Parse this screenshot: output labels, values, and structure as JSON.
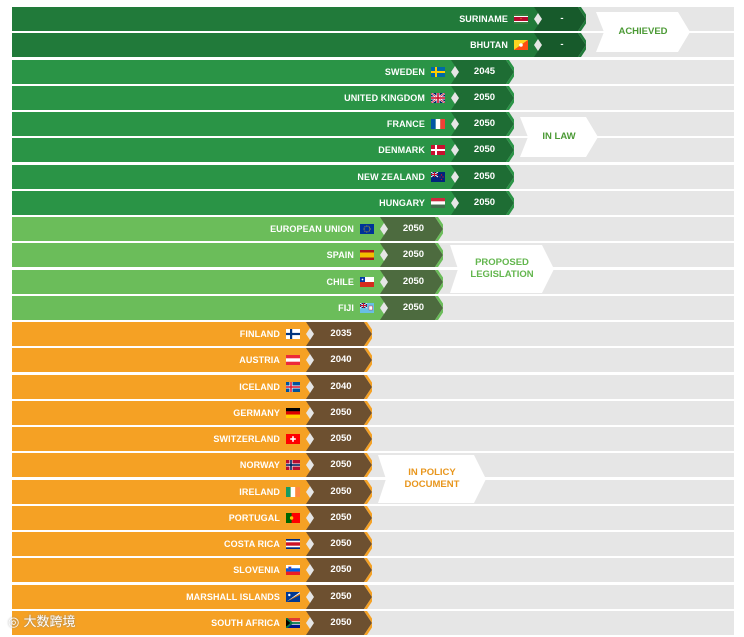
{
  "chart_data": {
    "type": "bar",
    "title": "",
    "colors": {
      "achieved": "#217a3a",
      "achieved_year": "#175a2b",
      "law": "#2a9446",
      "law_year": "#1e6d34",
      "proposed": "#6bbd5a",
      "proposed_year": "#4d6b3f",
      "policy": "#f5a124",
      "policy_year": "#6d5030",
      "track": "#e6e6e6"
    },
    "groups": [
      {
        "key": "achieved",
        "label_lines": [
          "ACHIEVED"
        ],
        "rows": [
          {
            "country": "SURINAME",
            "flag": "suriname-flag",
            "year": "-"
          },
          {
            "country": "BHUTAN",
            "flag": "bhutan-flag",
            "year": "-"
          }
        ]
      },
      {
        "key": "law",
        "label_lines": [
          "IN LAW"
        ],
        "rows": [
          {
            "country": "SWEDEN",
            "flag": "sweden-flag",
            "year": "2045"
          },
          {
            "country": "UNITED KINGDOM",
            "flag": "uk-flag",
            "year": "2050"
          },
          {
            "country": "FRANCE",
            "flag": "france-flag",
            "year": "2050"
          },
          {
            "country": "DENMARK",
            "flag": "denmark-flag",
            "year": "2050"
          },
          {
            "country": "NEW ZEALAND",
            "flag": "new-zealand-flag",
            "year": "2050"
          },
          {
            "country": "HUNGARY",
            "flag": "hungary-flag",
            "year": "2050"
          }
        ]
      },
      {
        "key": "proposed",
        "label_lines": [
          "PROPOSED",
          "LEGISLATION"
        ],
        "rows": [
          {
            "country": "EUROPEAN UNION",
            "flag": "eu-flag",
            "year": "2050"
          },
          {
            "country": "SPAIN",
            "flag": "spain-flag",
            "year": "2050"
          },
          {
            "country": "CHILE",
            "flag": "chile-flag",
            "year": "2050"
          },
          {
            "country": "FIJI",
            "flag": "fiji-flag",
            "year": "2050"
          }
        ]
      },
      {
        "key": "policy",
        "label_lines": [
          "IN POLICY",
          "DOCUMENT"
        ],
        "rows": [
          {
            "country": "FINLAND",
            "flag": "finland-flag",
            "year": "2035"
          },
          {
            "country": "AUSTRIA",
            "flag": "austria-flag",
            "year": "2040"
          },
          {
            "country": "ICELAND",
            "flag": "iceland-flag",
            "year": "2040"
          },
          {
            "country": "GERMANY",
            "flag": "germany-flag",
            "year": "2050"
          },
          {
            "country": "SWITZERLAND",
            "flag": "switzerland-flag",
            "year": "2050"
          },
          {
            "country": "NORWAY",
            "flag": "norway-flag",
            "year": "2050"
          },
          {
            "country": "IRELAND",
            "flag": "ireland-flag",
            "year": "2050"
          },
          {
            "country": "PORTUGAL",
            "flag": "portugal-flag",
            "year": "2050"
          },
          {
            "country": "COSTA RICA",
            "flag": "costa-rica-flag",
            "year": "2050"
          },
          {
            "country": "SLOVENIA",
            "flag": "slovenia-flag",
            "year": "2050"
          },
          {
            "country": "MARSHALL ISLANDS",
            "flag": "marshall-islands-flag",
            "year": "2050"
          },
          {
            "country": "SOUTH AFRICA",
            "flag": "south-africa-flag",
            "year": "2050"
          }
        ]
      }
    ]
  },
  "watermark": {
    "text": "大数跨境"
  }
}
